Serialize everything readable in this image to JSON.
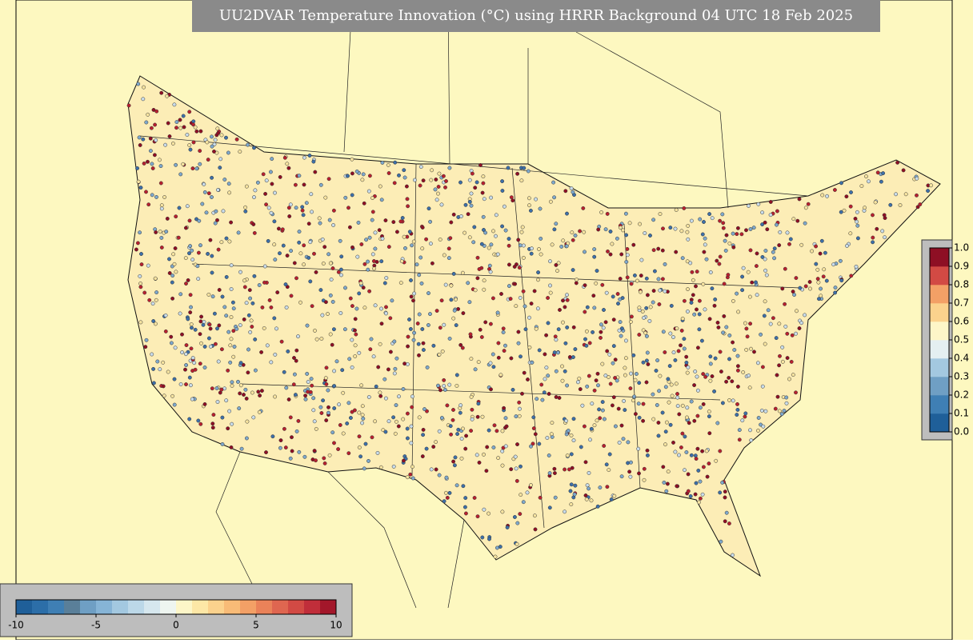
{
  "title": "UU2DVAR Temperature Innovation (°C) using HRRR Background 04 UTC 18 Feb 2025",
  "colorbar_horizontal": {
    "range": [
      -10,
      10
    ],
    "ticks": [
      -10,
      -5,
      0,
      5,
      10
    ],
    "colors": [
      "#1f5f99",
      "#2c6ea8",
      "#3f7fb4",
      "#5a7f99",
      "#6f9fc4",
      "#86b4d6",
      "#a3c8e0",
      "#bcd8e8",
      "#d6e7ee",
      "#eef5f0",
      "#fdf6c8",
      "#fde7a6",
      "#fbd28d",
      "#f8bb77",
      "#f3a066",
      "#ea8259",
      "#df6650",
      "#d24a44",
      "#c02e3a",
      "#a3172a"
    ]
  },
  "colorbar_vertical": {
    "range": [
      0,
      1
    ],
    "ticks": [
      {
        "value": 0,
        "label": "0.0"
      },
      {
        "value": 0.1,
        "label": "0.1"
      },
      {
        "value": 0.2,
        "label": "0.2"
      },
      {
        "value": 0.3,
        "label": "0.3"
      },
      {
        "value": 0.4,
        "label": "0.4"
      },
      {
        "value": 0.5,
        "label": "0.5"
      },
      {
        "value": 0.6,
        "label": "0.6"
      },
      {
        "value": 0.7,
        "label": "0.7"
      },
      {
        "value": 0.8,
        "label": "0.8"
      },
      {
        "value": 0.9,
        "label": "0.9"
      },
      {
        "value": 1,
        "label": "1.0"
      }
    ],
    "colors": [
      "#1f5f99",
      "#3f7fb4",
      "#6f9fc4",
      "#a3c8e0",
      "#e4eff1",
      "#fdf6c8",
      "#fbd28d",
      "#f3a066",
      "#d24a44",
      "#8e0f24"
    ]
  }
}
